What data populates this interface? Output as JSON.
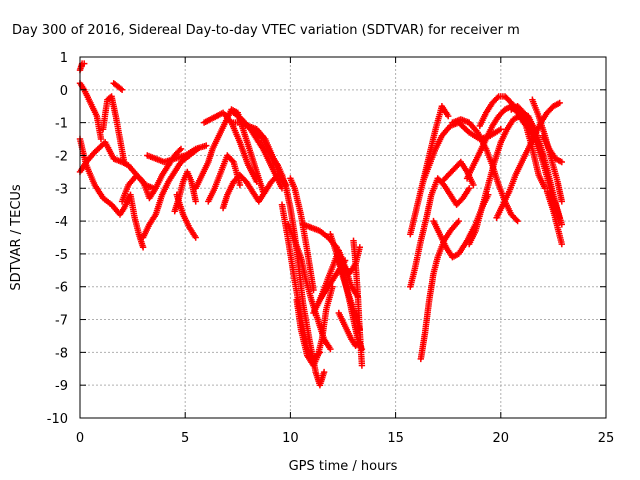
{
  "chart_data": {
    "type": "scatter",
    "title": "Day 300 of 2016, Sidereal Day-to-day VTEC variation (SDTVAR) for receiver m",
    "xlabel": "GPS time / hours",
    "ylabel": "SDTVAR / TECUs",
    "xlim": [
      0,
      25
    ],
    "ylim": [
      -10,
      1
    ],
    "xticks": [
      "0",
      "5",
      "10",
      "15",
      "20",
      "25"
    ],
    "yticks": [
      "1",
      "0",
      "-1",
      "-2",
      "-3",
      "-4",
      "-5",
      "-6",
      "-7",
      "-8",
      "-9",
      "-10"
    ],
    "grid": true,
    "marker": "+",
    "color": "#ff0000",
    "series": [
      {
        "name": "s1",
        "x": [
          0,
          0.1,
          0.2
        ],
        "y": [
          0.6,
          0.8,
          0.8
        ]
      },
      {
        "name": "s2",
        "x": [
          0,
          0.2,
          0.5,
          0.8,
          1.0
        ],
        "y": [
          0.2,
          0,
          -0.4,
          -0.8,
          -1.5
        ]
      },
      {
        "name": "s3",
        "x": [
          0,
          0.3,
          0.7,
          1.1,
          1.5,
          1.9,
          2.1,
          2.4,
          2.6,
          2.8,
          3.0
        ],
        "y": [
          -1.5,
          -2.3,
          -2.9,
          -3.3,
          -3.5,
          -3.8,
          -3.6,
          -3.2,
          -3.9,
          -4.4,
          -4.8
        ]
      },
      {
        "name": "s4",
        "x": [
          0,
          0.3,
          0.7,
          1.2,
          1.6,
          2.0,
          2.3,
          2.7,
          3.1,
          3.5
        ],
        "y": [
          -2.5,
          -2.2,
          -1.9,
          -1.6,
          -2.1,
          -2.2,
          -2.3,
          -2.6,
          -2.9,
          -3.0
        ]
      },
      {
        "name": "s5",
        "x": [
          1.1,
          1.3,
          1.5,
          1.7,
          1.9,
          2.1
        ],
        "y": [
          -1.2,
          -0.3,
          -0.2,
          -0.8,
          -1.5,
          -2.2
        ]
      },
      {
        "name": "s6",
        "x": [
          1.6,
          1.8,
          2.0
        ],
        "y": [
          0.2,
          0.1,
          0
        ]
      },
      {
        "name": "s7",
        "x": [
          2.0,
          2.3,
          2.7,
          3.0,
          3.3,
          3.6,
          3.9,
          4.2,
          4.5,
          4.8
        ],
        "y": [
          -3.4,
          -2.9,
          -2.6,
          -2.8,
          -3.3,
          -3.0,
          -2.6,
          -2.3,
          -2.0,
          -1.8
        ]
      },
      {
        "name": "s8",
        "x": [
          3.0,
          3.3,
          3.6,
          3.9,
          4.2,
          4.5,
          4.8,
          5.2,
          5.6
        ],
        "y": [
          -4.5,
          -4.1,
          -3.8,
          -3.2,
          -2.8,
          -2.5,
          -2.2,
          -2.0,
          -1.8
        ]
      },
      {
        "name": "s9",
        "x": [
          3.2,
          3.6,
          4.0,
          4.5,
          5.0,
          5.5,
          6.0
        ],
        "y": [
          -2.0,
          -2.1,
          -2.2,
          -2.1,
          -2.0,
          -1.8,
          -1.7
        ]
      },
      {
        "name": "s10",
        "x": [
          4.5,
          4.7,
          4.9,
          5.1,
          5.3,
          5.5
        ],
        "y": [
          -3.7,
          -3.3,
          -2.8,
          -2.5,
          -2.8,
          -3.4
        ]
      },
      {
        "name": "s11",
        "x": [
          4.6,
          4.9,
          5.2,
          5.5
        ],
        "y": [
          -3.2,
          -3.8,
          -4.2,
          -4.5
        ]
      },
      {
        "name": "s12",
        "x": [
          5.5,
          5.8,
          6.1,
          6.3,
          6.6,
          6.9,
          7.2,
          7.5,
          7.8,
          8.1,
          8.4,
          8.7
        ],
        "y": [
          -3.0,
          -2.6,
          -2.2,
          -1.8,
          -1.4,
          -1.0,
          -0.6,
          -0.7,
          -1.3,
          -1.9,
          -2.5,
          -3.1
        ]
      },
      {
        "name": "s13",
        "x": [
          6.1,
          6.4,
          6.7,
          7.0,
          7.3,
          7.6
        ],
        "y": [
          -3.4,
          -3.0,
          -2.5,
          -2.0,
          -2.2,
          -2.9
        ]
      },
      {
        "name": "s14",
        "x": [
          5.9,
          6.2,
          6.5,
          6.8,
          7.2,
          7.6,
          8.0,
          8.4
        ],
        "y": [
          -1.0,
          -0.9,
          -0.8,
          -0.7,
          -1.0,
          -1.6,
          -2.3,
          -2.8
        ]
      },
      {
        "name": "s15",
        "x": [
          6.8,
          7.0,
          7.3,
          7.6,
          7.9,
          8.2,
          8.5,
          8.8,
          9.1,
          9.4
        ],
        "y": [
          -3.6,
          -3.2,
          -2.8,
          -2.6,
          -2.8,
          -3.1,
          -3.4,
          -3.1,
          -2.8,
          -2.6
        ]
      },
      {
        "name": "s16",
        "x": [
          7.3,
          7.7,
          8.1,
          8.4,
          8.7,
          9.0,
          9.3,
          9.6
        ],
        "y": [
          -0.7,
          -0.9,
          -1.2,
          -1.5,
          -1.8,
          -2.2,
          -2.6,
          -3.0
        ]
      },
      {
        "name": "s17",
        "x": [
          7.2,
          7.7,
          8.2,
          8.7,
          9.1,
          9.4,
          9.6
        ],
        "y": [
          -1.0,
          -1.0,
          -1.2,
          -1.5,
          -2.0,
          -2.3,
          -2.6
        ]
      },
      {
        "name": "s18",
        "x": [
          8.0,
          8.4,
          8.8,
          9.2,
          9.5,
          9.8
        ],
        "y": [
          -1.1,
          -1.2,
          -1.5,
          -2.1,
          -2.6,
          -2.9
        ]
      },
      {
        "name": "s19",
        "x": [
          9.6,
          9.8,
          10.0,
          10.2,
          10.4,
          10.6,
          10.9,
          11.2,
          11.4,
          11.6
        ],
        "y": [
          -2.6,
          -3.0,
          -3.6,
          -4.4,
          -5.4,
          -6.5,
          -7.6,
          -8.6,
          -9.0,
          -8.6
        ]
      },
      {
        "name": "s20",
        "x": [
          9.6,
          9.9,
          10.2,
          10.5,
          10.8,
          11.1,
          11.4
        ],
        "y": [
          -3.5,
          -4.6,
          -5.8,
          -6.9,
          -7.9,
          -8.2,
          -8.0
        ]
      },
      {
        "name": "s21",
        "x": [
          9.9,
          10.2,
          10.5,
          10.7,
          11.0,
          11.3,
          11.6,
          11.9
        ],
        "y": [
          -4.1,
          -4.6,
          -5.1,
          -5.7,
          -6.4,
          -7.0,
          -7.6,
          -7.9
        ]
      },
      {
        "name": "s22",
        "x": [
          10.0,
          10.2,
          10.5,
          10.8,
          11.1
        ],
        "y": [
          -2.7,
          -3.0,
          -3.8,
          -4.9,
          -6.1
        ]
      },
      {
        "name": "s23",
        "x": [
          10.3,
          10.5,
          10.8,
          11.1,
          11.3,
          11.5,
          11.7,
          12.0
        ],
        "y": [
          -6.4,
          -7.3,
          -8.1,
          -8.4,
          -8.1,
          -7.6,
          -6.7,
          -6.0
        ]
      },
      {
        "name": "s24",
        "x": [
          10.6,
          11.0,
          11.4,
          11.8,
          12.2,
          12.5,
          12.8,
          13.1,
          13.3
        ],
        "y": [
          -4.1,
          -4.2,
          -4.3,
          -4.5,
          -4.8,
          -5.3,
          -5.6,
          -5.3,
          -4.8
        ]
      },
      {
        "name": "s25",
        "x": [
          11.1,
          11.4,
          11.7,
          12.0,
          12.3,
          12.6
        ],
        "y": [
          -6.8,
          -6.4,
          -6.1,
          -5.8,
          -5.5,
          -5.2
        ]
      },
      {
        "name": "s26",
        "x": [
          11.4,
          11.7,
          12.0,
          12.3,
          12.6,
          12.9,
          13.2
        ],
        "y": [
          -6.4,
          -5.9,
          -5.4,
          -4.9,
          -5.4,
          -6.0,
          -6.3
        ]
      },
      {
        "name": "s27",
        "x": [
          11.9,
          12.2,
          12.5,
          12.8,
          13.1,
          13.3
        ],
        "y": [
          -4.4,
          -5.0,
          -5.7,
          -6.3,
          -6.9,
          -7.3
        ]
      },
      {
        "name": "s28",
        "x": [
          12.2,
          12.5,
          12.8,
          13.0,
          13.2,
          13.4
        ],
        "y": [
          -5.0,
          -5.6,
          -6.4,
          -7.0,
          -7.6,
          -7.9
        ]
      },
      {
        "name": "s29",
        "x": [
          12.3,
          12.6,
          12.9,
          13.1,
          13.3
        ],
        "y": [
          -6.8,
          -7.2,
          -7.6,
          -7.8,
          -7.7
        ]
      },
      {
        "name": "s30",
        "x": [
          13.0,
          13.1,
          13.2,
          13.3,
          13.4
        ],
        "y": [
          -4.6,
          -5.3,
          -6.2,
          -7.4,
          -8.4
        ]
      },
      {
        "name": "s31",
        "x": [
          15.7,
          15.9,
          16.2,
          16.5,
          16.7,
          17.0,
          17.3,
          17.6,
          17.9,
          18.2,
          18.5
        ],
        "y": [
          -6.0,
          -5.5,
          -4.6,
          -3.8,
          -3.2,
          -2.7,
          -2.9,
          -3.2,
          -3.5,
          -3.3,
          -3.0
        ]
      },
      {
        "name": "s32",
        "x": [
          16.2,
          16.4,
          16.6,
          16.8,
          17.0,
          17.3,
          17.6,
          18.0
        ],
        "y": [
          -8.2,
          -7.4,
          -6.4,
          -5.6,
          -5.1,
          -4.6,
          -4.3,
          -4.0
        ]
      },
      {
        "name": "s33",
        "x": [
          15.7,
          16.0,
          16.3,
          16.6,
          16.9,
          17.2,
          17.5
        ],
        "y": [
          -4.4,
          -3.6,
          -2.8,
          -2.0,
          -1.2,
          -0.5,
          -0.8
        ]
      },
      {
        "name": "s34",
        "x": [
          16.3,
          16.6,
          16.9,
          17.2,
          17.6,
          18.0,
          18.5,
          19.0,
          19.5,
          20.0
        ],
        "y": [
          -2.8,
          -2.3,
          -1.8,
          -1.4,
          -1.1,
          -1.0,
          -1.3,
          -1.5,
          -1.4,
          -1.2
        ]
      },
      {
        "name": "s35",
        "x": [
          16.8,
          17.1,
          17.4,
          17.7,
          18.0,
          18.4,
          18.8,
          19.1,
          19.4
        ],
        "y": [
          -4.0,
          -4.4,
          -4.8,
          -5.1,
          -5.0,
          -4.6,
          -4.1,
          -3.6,
          -3.2
        ]
      },
      {
        "name": "s36",
        "x": [
          17.2,
          17.5,
          17.8,
          18.1,
          18.4,
          18.7
        ],
        "y": [
          -2.8,
          -2.6,
          -2.4,
          -2.2,
          -2.5,
          -2.9
        ]
      },
      {
        "name": "s37",
        "x": [
          17.7,
          18.1,
          18.5,
          18.9,
          19.3,
          19.6,
          19.9,
          20.2,
          20.5,
          20.8
        ],
        "y": [
          -1.0,
          -0.9,
          -1.0,
          -1.3,
          -1.8,
          -2.3,
          -2.9,
          -3.4,
          -3.8,
          -4.0
        ]
      },
      {
        "name": "s38",
        "x": [
          18.4,
          18.7,
          19.0,
          19.3,
          19.6,
          19.9,
          20.2,
          20.5,
          20.8,
          21.1
        ],
        "y": [
          -2.7,
          -2.3,
          -1.9,
          -1.5,
          -1.1,
          -0.8,
          -0.6,
          -0.5,
          -0.7,
          -1.0
        ]
      },
      {
        "name": "s39",
        "x": [
          18.5,
          18.8,
          19.1,
          19.4,
          19.7,
          20.0,
          20.3,
          20.6,
          20.9,
          21.2,
          21.5,
          21.8,
          22.1
        ],
        "y": [
          -4.7,
          -4.3,
          -3.6,
          -2.9,
          -2.2,
          -1.6,
          -1.2,
          -0.9,
          -0.8,
          -1.1,
          -1.8,
          -2.6,
          -3.0
        ]
      },
      {
        "name": "s40",
        "x": [
          19.0,
          19.3,
          19.6,
          19.9,
          20.2,
          20.5,
          20.8,
          21.1,
          21.4,
          21.7,
          22.0
        ],
        "y": [
          -1.1,
          -0.7,
          -0.4,
          -0.2,
          -0.2,
          -0.4,
          -0.6,
          -0.9,
          -1.2,
          -1.6,
          -2.0
        ]
      },
      {
        "name": "s41",
        "x": [
          19.8,
          20.1,
          20.4,
          20.7,
          21.0,
          21.3,
          21.6,
          21.9,
          22.2,
          22.5,
          22.8
        ],
        "y": [
          -3.9,
          -3.5,
          -3.1,
          -2.6,
          -2.2,
          -1.8,
          -1.4,
          -1.0,
          -0.7,
          -0.5,
          -0.4
        ]
      },
      {
        "name": "s42",
        "x": [
          20.5,
          20.8,
          21.1,
          21.4,
          21.7,
          22.0,
          22.3,
          22.6,
          22.9
        ],
        "y": [
          -0.6,
          -0.5,
          -0.7,
          -1.1,
          -1.6,
          -2.2,
          -2.9,
          -3.5,
          -4.1
        ]
      },
      {
        "name": "s43",
        "x": [
          21.0,
          21.3,
          21.6,
          21.9,
          22.2,
          22.5,
          22.8
        ],
        "y": [
          -0.7,
          -0.8,
          -1.2,
          -1.7,
          -2.4,
          -3.2,
          -3.9
        ]
      },
      {
        "name": "s44",
        "x": [
          21.5,
          21.8,
          22.1,
          22.4,
          22.7,
          22.9
        ],
        "y": [
          -0.3,
          -0.8,
          -1.4,
          -2.1,
          -2.8,
          -3.4
        ]
      },
      {
        "name": "s45",
        "x": [
          22.0,
          22.3,
          22.6,
          22.9
        ],
        "y": [
          -1.4,
          -1.8,
          -2.1,
          -2.2
        ]
      },
      {
        "name": "s46",
        "x": [
          22.2,
          22.5,
          22.7,
          22.9
        ],
        "y": [
          -3.1,
          -3.7,
          -4.2,
          -4.7
        ]
      }
    ]
  }
}
